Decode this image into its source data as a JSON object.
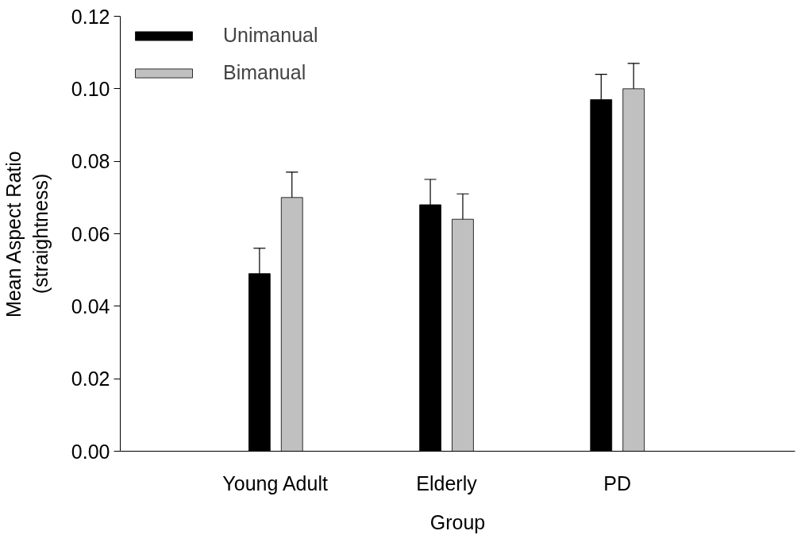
{
  "chart_data": {
    "type": "bar",
    "xlabel": "Group",
    "ylabel": "Mean Aspect Ratio\n(straightness)",
    "categories": [
      "Young Adult",
      "Elderly",
      "PD"
    ],
    "series": [
      {
        "name": "Unimanual",
        "color": "#000000",
        "values": [
          0.049,
          0.068,
          0.097
        ],
        "errors": [
          [
            0.049,
            0.056
          ],
          [
            0.068,
            0.075
          ],
          [
            0.097,
            0.104
          ]
        ]
      },
      {
        "name": "Bimanual",
        "color": "#c0c0c0",
        "values": [
          0.07,
          0.064,
          0.1
        ],
        "errors": [
          [
            0.07,
            0.077
          ],
          [
            0.064,
            0.071
          ],
          [
            0.1,
            0.107
          ]
        ]
      }
    ],
    "ylim": [
      0,
      0.12
    ],
    "yticks": [
      {
        "value": 0,
        "label": "0.00"
      },
      {
        "value": 0.02,
        "label": "0.02"
      },
      {
        "value": 0.04,
        "label": "0.04"
      },
      {
        "value": 0.06,
        "label": "0.06"
      },
      {
        "value": 0.08,
        "label": "0.08"
      },
      {
        "value": 0.1,
        "label": "0.10"
      },
      {
        "value": 0.12,
        "label": "0.12"
      }
    ],
    "grid": false,
    "legend": "top left"
  }
}
